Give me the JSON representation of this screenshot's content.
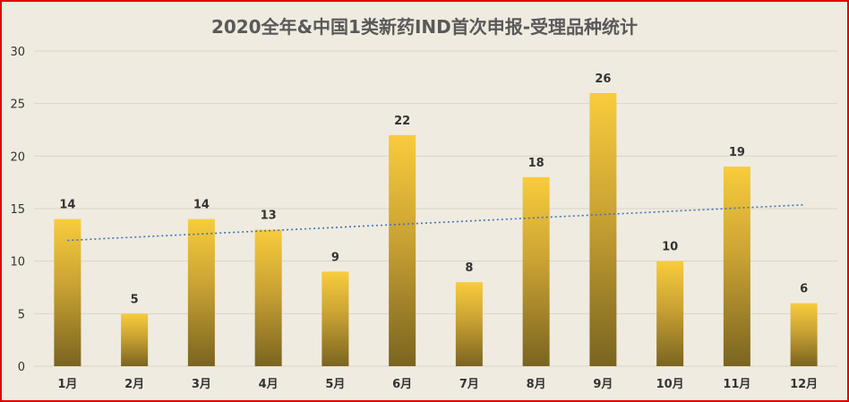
{
  "chart_data": {
    "type": "bar",
    "title": "2020全年&中国1类新药IND首次申报-受理品种统计",
    "xlabel": "",
    "ylabel": "",
    "categories": [
      "1月",
      "2月",
      "3月",
      "4月",
      "5月",
      "6月",
      "7月",
      "8月",
      "9月",
      "10月",
      "11月",
      "12月"
    ],
    "values": [
      14,
      5,
      14,
      13,
      9,
      22,
      8,
      18,
      26,
      10,
      19,
      6
    ],
    "ylim": [
      0,
      30
    ],
    "yticks": [
      0,
      5,
      10,
      15,
      20,
      25,
      30
    ],
    "grid": true,
    "trendline": "linear",
    "legend": "none",
    "colors": {
      "bar_top": "#f8cc3c",
      "bar_bottom": "#7a6420",
      "trendline": "#3f74b5",
      "grid": "#d8d4c8",
      "background": "#efebe0",
      "border": "#e00000"
    }
  }
}
